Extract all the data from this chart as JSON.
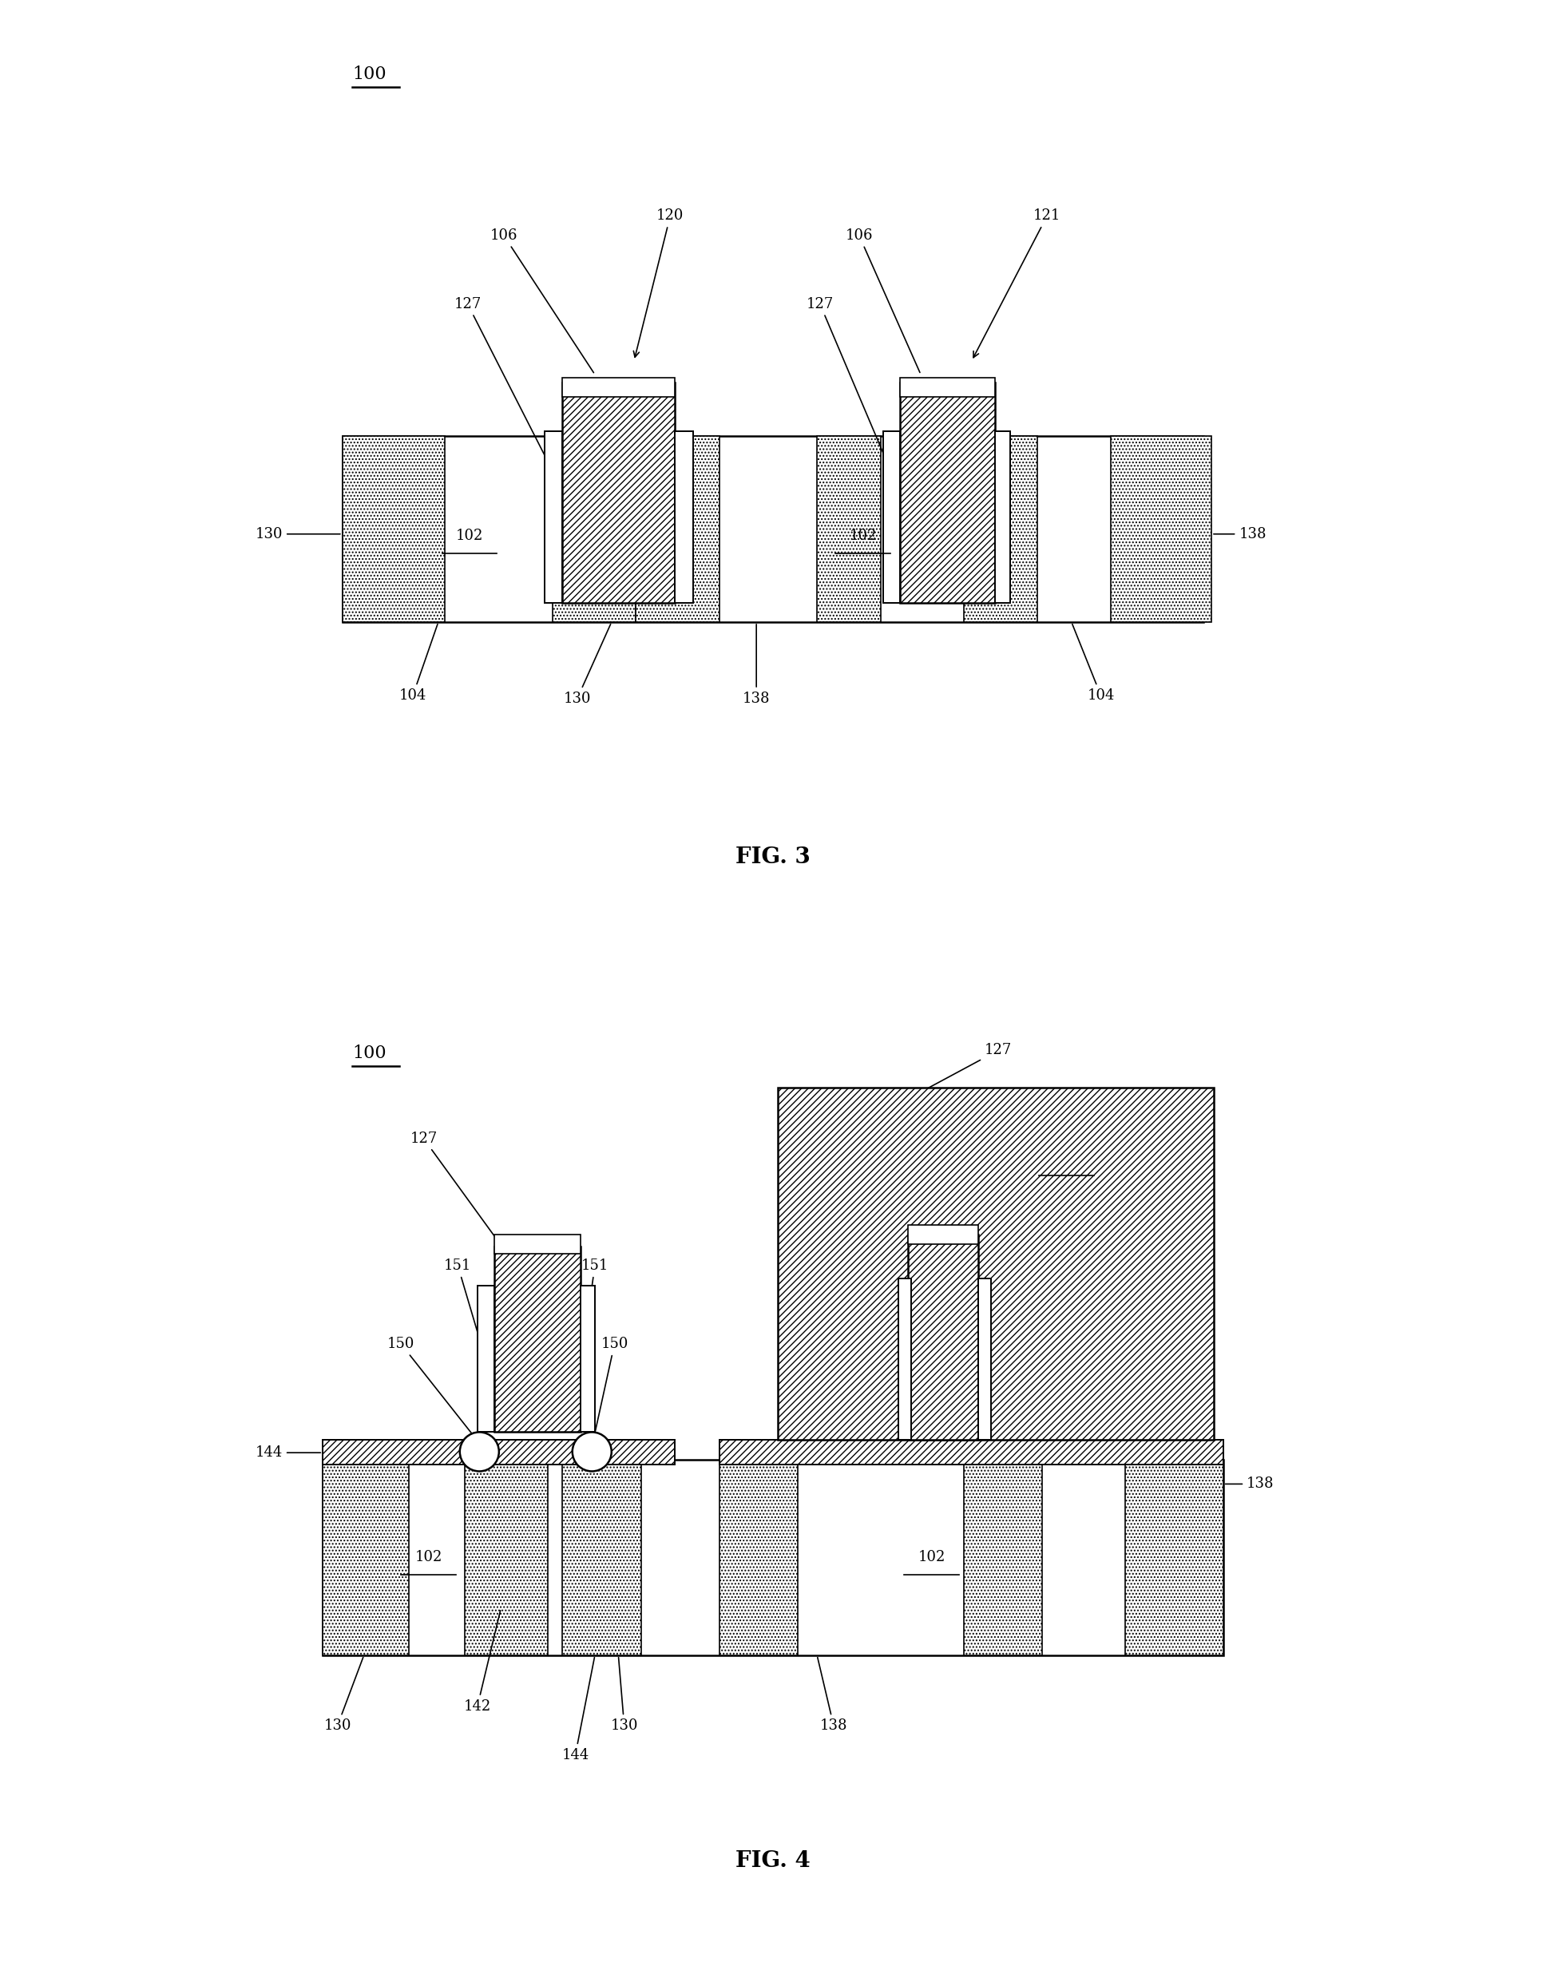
{
  "bg_color": "#ffffff",
  "line_color": "#000000",
  "fig3_title": "FIG. 3",
  "fig4_title": "FIG. 4",
  "label_100": "100"
}
